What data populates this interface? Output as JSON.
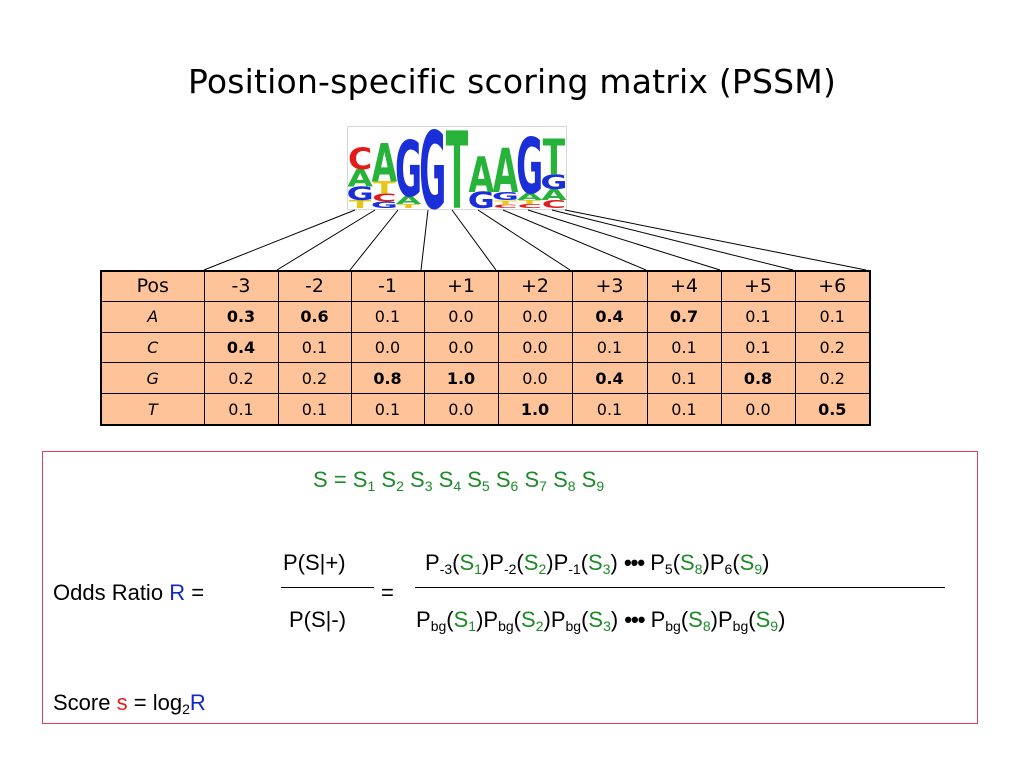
{
  "title": "Position-specific scoring matrix (PSSM)",
  "logo": {
    "columns": [
      [
        {
          "l": "C",
          "c": "#e21b1b",
          "h": 0.27
        },
        {
          "l": "A",
          "c": "#27b33a",
          "h": 0.22
        },
        {
          "l": "G",
          "c": "#1b2fd8",
          "h": 0.17
        },
        {
          "l": "T",
          "c": "#e8c617",
          "h": 0.1
        }
      ],
      [
        {
          "l": "A",
          "c": "#27b33a",
          "h": 0.48
        },
        {
          "l": "T",
          "c": "#e8c617",
          "h": 0.15
        },
        {
          "l": "C",
          "c": "#e21b1b",
          "h": 0.1
        },
        {
          "l": "G",
          "c": "#1b2fd8",
          "h": 0.08
        }
      ],
      [
        {
          "l": "G",
          "c": "#1b2fd8",
          "h": 0.7
        },
        {
          "l": "A",
          "c": "#27b33a",
          "h": 0.1
        },
        {
          "l": "T",
          "c": "#e8c617",
          "h": 0.05
        }
      ],
      [
        {
          "l": "G",
          "c": "#1b2fd8",
          "h": 0.97
        }
      ],
      [
        {
          "l": "T",
          "c": "#27b33a",
          "h": 0.97
        }
      ],
      [
        {
          "l": "A",
          "c": "#27b33a",
          "h": 0.45
        },
        {
          "l": "G",
          "c": "#1b2fd8",
          "h": 0.2
        }
      ],
      [
        {
          "l": "A",
          "c": "#27b33a",
          "h": 0.55
        },
        {
          "l": "G",
          "c": "#1b2fd8",
          "h": 0.1
        },
        {
          "l": "T",
          "c": "#e8c617",
          "h": 0.06
        },
        {
          "l": "C",
          "c": "#e21b1b",
          "h": 0.04
        }
      ],
      [
        {
          "l": "G",
          "c": "#1b2fd8",
          "h": 0.7
        },
        {
          "l": "A",
          "c": "#27b33a",
          "h": 0.09
        },
        {
          "l": "T",
          "c": "#e8c617",
          "h": 0.05
        },
        {
          "l": "C",
          "c": "#e21b1b",
          "h": 0.05
        }
      ],
      [
        {
          "l": "T",
          "c": "#27b33a",
          "h": 0.45
        },
        {
          "l": "G",
          "c": "#1b2fd8",
          "h": 0.18
        },
        {
          "l": "A",
          "c": "#27b33a",
          "h": 0.14
        },
        {
          "l": "C",
          "c": "#e21b1b",
          "h": 0.1
        }
      ]
    ]
  },
  "table": {
    "header": [
      "Pos",
      "-3",
      "-2",
      "-1",
      "+1",
      "+2",
      "+3",
      "+4",
      "+5",
      "+6"
    ],
    "rows": [
      {
        "label": "A",
        "values": [
          "0.3",
          "0.6",
          "0.1",
          "0.0",
          "0.0",
          "0.4",
          "0.7",
          "0.1",
          "0.1"
        ],
        "bold": [
          true,
          true,
          false,
          false,
          false,
          true,
          true,
          false,
          false
        ]
      },
      {
        "label": "C",
        "values": [
          "0.4",
          "0.1",
          "0.0",
          "0.0",
          "0.0",
          "0.1",
          "0.1",
          "0.1",
          "0.2"
        ],
        "bold": [
          true,
          false,
          false,
          false,
          false,
          false,
          false,
          false,
          false
        ]
      },
      {
        "label": "G",
        "values": [
          "0.2",
          "0.2",
          "0.8",
          "1.0",
          "0.0",
          "0.4",
          "0.1",
          "0.8",
          "0.2"
        ],
        "bold": [
          false,
          false,
          true,
          true,
          false,
          true,
          false,
          true,
          false
        ]
      },
      {
        "label": "T",
        "values": [
          "0.1",
          "0.1",
          "0.1",
          "0.0",
          "1.0",
          "0.1",
          "0.1",
          "0.0",
          "0.5"
        ],
        "bold": [
          false,
          false,
          false,
          false,
          true,
          false,
          false,
          false,
          true
        ]
      }
    ]
  },
  "formula": {
    "seq_lhs": "S",
    "eq": "=",
    "s": "S",
    "subs": [
      "1",
      "2",
      "3",
      "4",
      "5",
      "6",
      "7",
      "8",
      "9"
    ],
    "odds_label": "Odds Ratio",
    "R": "R",
    "frac1_num": "P(S|+)",
    "frac1_den": "P(S|-)",
    "P": "P",
    "bg": "bg",
    "p_subs": [
      "-3",
      "-2",
      "-1",
      "5",
      "6"
    ],
    "dots": "•••",
    "lp": "(",
    "rp": ")",
    "score_label": "Score",
    "s_small": "s",
    "log": "log",
    "log_base": "2"
  },
  "colors": {
    "table_fill": "#ffc39a",
    "box_border": "#e2405a",
    "green": "#1e8a2a",
    "blue": "#1428c8",
    "red": "#e01e1e"
  }
}
